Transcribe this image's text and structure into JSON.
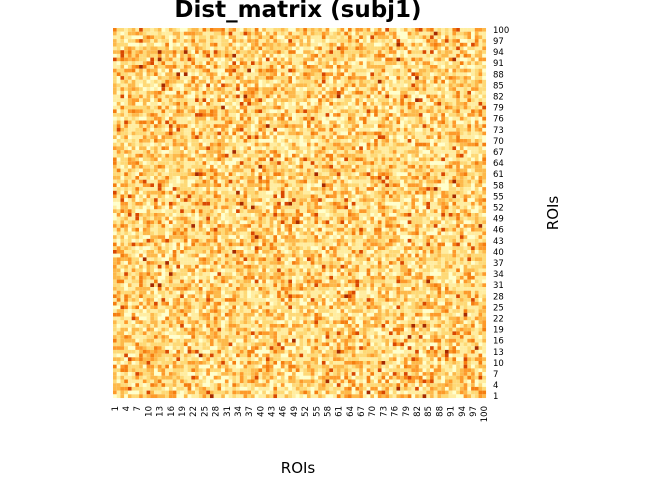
{
  "chart_data": {
    "type": "heatmap",
    "title": "Dist_matrix (subj1)",
    "xlabel": "ROIs",
    "ylabel": "ROIs",
    "n_rows": 100,
    "n_cols": 100,
    "x_tick_labels": [
      "1",
      "4",
      "7",
      "10",
      "13",
      "16",
      "19",
      "22",
      "25",
      "28",
      "31",
      "34",
      "37",
      "40",
      "43",
      "46",
      "49",
      "52",
      "55",
      "58",
      "61",
      "64",
      "67",
      "70",
      "73",
      "76",
      "79",
      "82",
      "85",
      "88",
      "91",
      "94",
      "97",
      "100"
    ],
    "y_tick_labels": [
      "1",
      "4",
      "7",
      "10",
      "13",
      "16",
      "19",
      "22",
      "25",
      "28",
      "31",
      "34",
      "37",
      "40",
      "43",
      "46",
      "49",
      "52",
      "55",
      "58",
      "61",
      "64",
      "67",
      "70",
      "73",
      "76",
      "79",
      "82",
      "85",
      "88",
      "91",
      "94",
      "97",
      "100"
    ],
    "colormap": [
      "#ffffcc",
      "#ffeda0",
      "#fed976",
      "#fdb94a",
      "#fd9a2a",
      "#f57e10",
      "#d94801",
      "#a52a00"
    ],
    "legend": "none",
    "grid": false
  }
}
